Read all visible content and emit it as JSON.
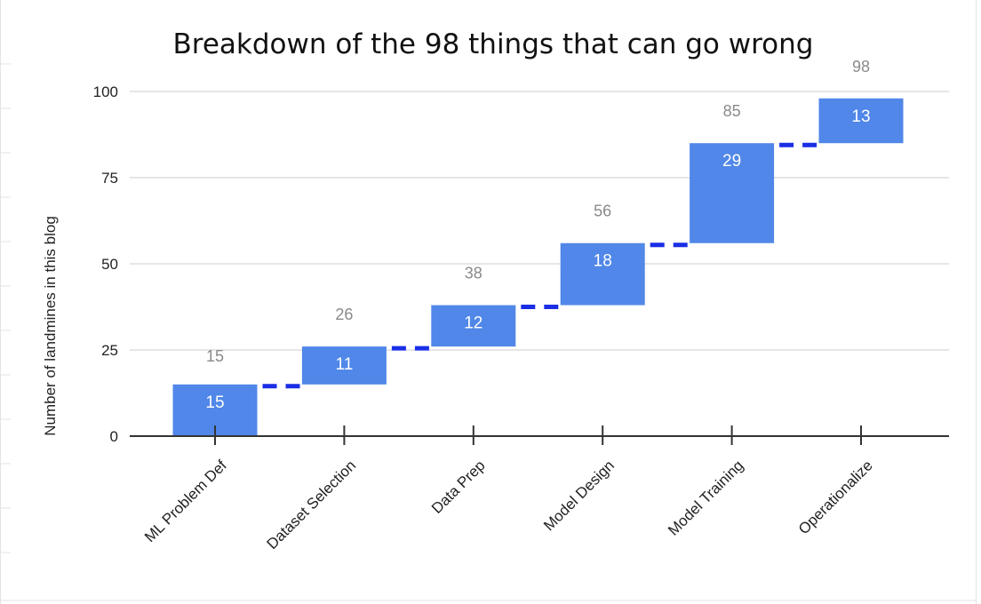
{
  "chart_data": {
    "type": "bar",
    "subtype": "waterfall",
    "title": "Breakdown of the 98 things that can go wrong",
    "ylabel": "Number of landmines in this blog",
    "xlabel": "",
    "ylim": [
      0,
      100
    ],
    "yticks": [
      0,
      25,
      50,
      75,
      100
    ],
    "grid": true,
    "legend": "none",
    "categories": [
      "ML Problem Def",
      "Dataset Selection",
      "Data Prep",
      "Model Design",
      "Model Training",
      "Operationalize"
    ],
    "values": [
      15,
      11,
      12,
      18,
      29,
      13
    ],
    "totals": [
      15,
      26,
      38,
      56,
      85,
      98
    ],
    "colors": {
      "bar": "#5087e8",
      "connector": "#1a2ee6",
      "value_label": "#ffffff",
      "total_label": "#8a8a8a"
    }
  }
}
